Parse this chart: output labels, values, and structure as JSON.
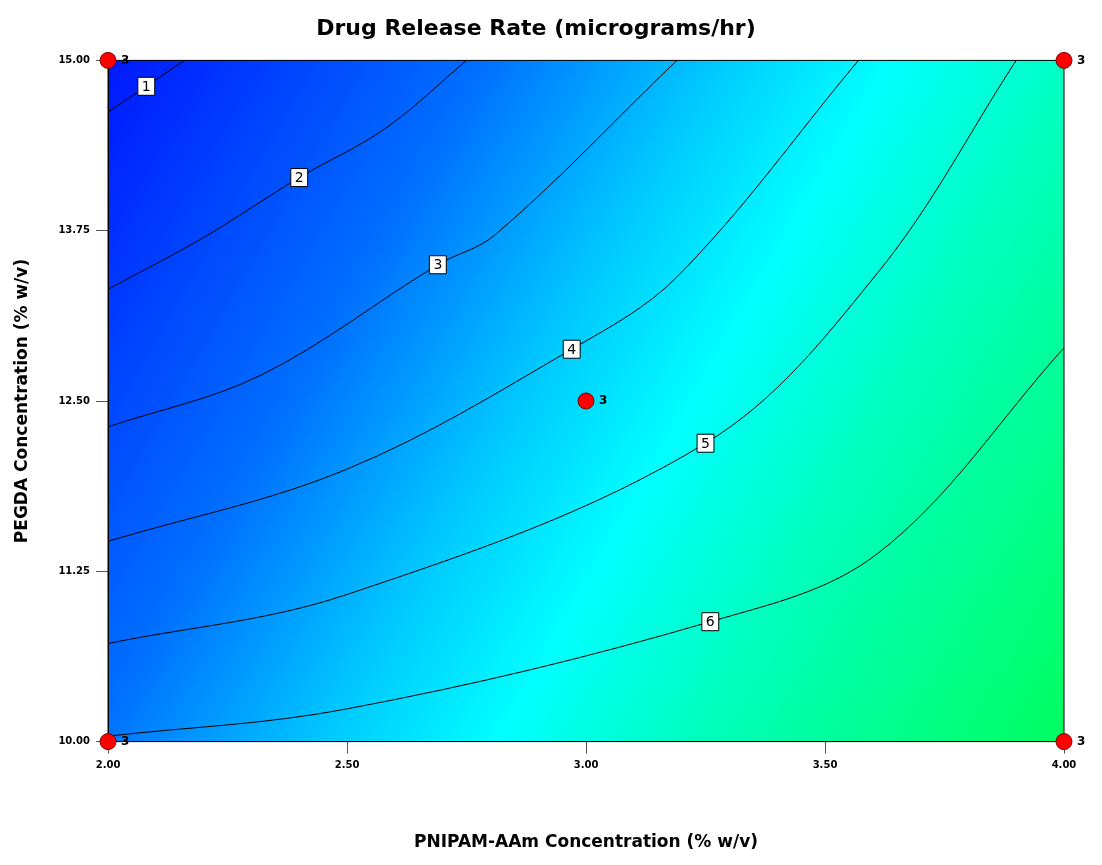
{
  "chart_data": {
    "type": "line",
    "title": "Drug Release Rate (micrograms/hr)",
    "xlabel": "PNIPAM-AAm Concentration (% w/v)",
    "ylabel": "PEGDA Concentration (% w/v)",
    "xlim": [
      2,
      4
    ],
    "xticks": [
      {
        "value": 2,
        "label": "2.00"
      },
      {
        "value": 2.5,
        "label": "2.50"
      },
      {
        "value": 3,
        "label": "3.00"
      },
      {
        "value": 3.5,
        "label": "3.50"
      },
      {
        "value": 4,
        "label": "4.00"
      }
    ],
    "ylim": [
      10,
      15
    ],
    "yticks": [
      {
        "value": 10,
        "label": "10.00"
      },
      {
        "value": 11.25,
        "label": "11.25"
      },
      {
        "value": 12.5,
        "label": "12.50"
      },
      {
        "value": 13.75,
        "label": "13.75"
      },
      {
        "value": 15,
        "label": "15.00"
      }
    ],
    "grid": false,
    "legend": false,
    "marker": "none",
    "line_style": "solid",
    "series": [
      {
        "name": "1",
        "type": "line",
        "color": "#000000",
        "x": [
          2,
          2.08,
          2.16
        ],
        "values": [
          14.62,
          14.81,
          15
        ]
      },
      {
        "name": "2",
        "type": "line",
        "color": "#000000",
        "x": [
          2,
          2.2,
          2.4,
          2.58,
          2.75
        ],
        "values": [
          13.32,
          13.7,
          14.14,
          14.5,
          15
        ]
      },
      {
        "name": "3",
        "type": "line",
        "color": "#000000",
        "x": [
          2,
          2.32,
          2.69,
          2.81,
          3.19
        ],
        "values": [
          12.31,
          12.69,
          13.5,
          13.72,
          15
        ]
      },
      {
        "name": "4",
        "type": "line",
        "color": "#000000",
        "x": [
          2,
          2.5,
          2.97,
          3.19,
          3.57
        ],
        "values": [
          11.47,
          12.0,
          12.88,
          13.41,
          15
        ]
      },
      {
        "name": "5",
        "type": "line",
        "color": "#000000",
        "x": [
          2,
          2.5,
          3.25,
          3.61,
          3.9
        ],
        "values": [
          10.72,
          11.08,
          12.19,
          13.44,
          15
        ]
      },
      {
        "name": "6",
        "type": "line",
        "color": "#000000",
        "x": [
          2,
          2.5,
          3.26,
          3.61,
          4
        ],
        "values": [
          10.04,
          10.24,
          10.88,
          11.38,
          12.89
        ]
      },
      {
        "type": "scatter",
        "color": "#ff0000",
        "marker": "circle",
        "x": [
          2,
          4,
          3,
          2,
          4
        ],
        "values": [
          15,
          15,
          12.5,
          10,
          10
        ]
      }
    ],
    "annotations": [
      {
        "text": "3",
        "x": 2,
        "y": 15
      },
      {
        "text": "3",
        "x": 4,
        "y": 15
      },
      {
        "text": "3",
        "x": 3,
        "y": 12.5
      },
      {
        "text": "3",
        "x": 2,
        "y": 10
      },
      {
        "text": "3",
        "x": 4,
        "y": 10
      }
    ]
  }
}
